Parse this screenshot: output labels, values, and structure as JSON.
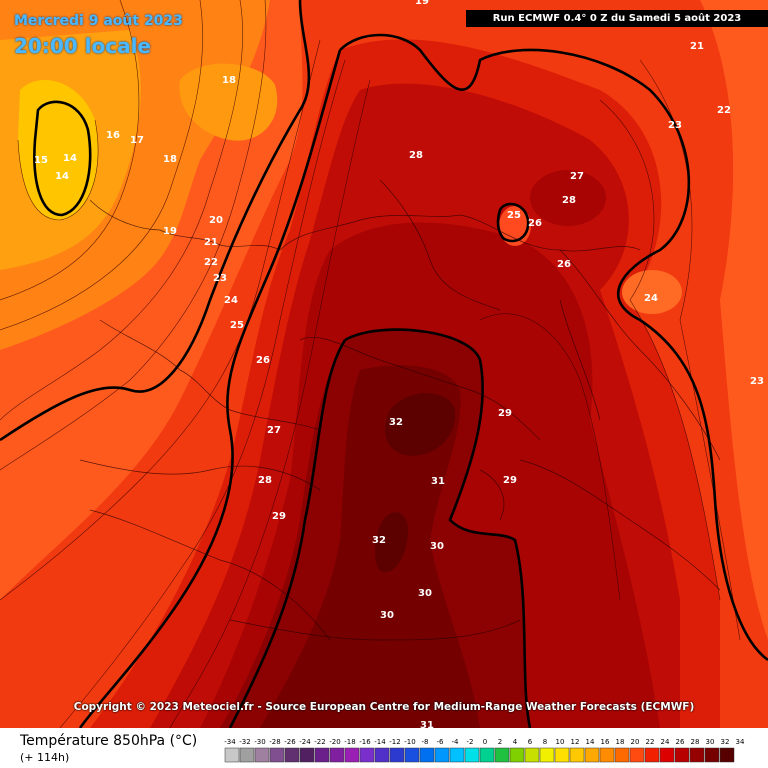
{
  "header": {
    "date_title": "Mercredi 9 août 2023",
    "time_title": "20:00 locale",
    "run_info": "Run ECMWF 0.4° 0 Z du Samedi 5 août 2023"
  },
  "footer": {
    "copyright": "Copyright © 2023 Meteociel.fr - Source European Centre for Medium-Range Weather Forecasts (ECMWF)",
    "legend_title": "Température 850hPa (°C)",
    "legend_subtitle": "(+ 114h)"
  },
  "scale": {
    "labels": [
      "-34",
      "-32",
      "-30",
      "-28",
      "-26",
      "-24",
      "-22",
      "-20",
      "-18",
      "-16",
      "-14",
      "-12",
      "-10",
      "-8",
      "-6",
      "-4",
      "-2",
      "0",
      "2",
      "4",
      "6",
      "8",
      "10",
      "12",
      "14",
      "16",
      "18",
      "20",
      "22",
      "24",
      "26",
      "28",
      "30",
      "32",
      "34"
    ],
    "colors": [
      "#c8c8c8",
      "#a0a0a0",
      "#a080a0",
      "#7f4f8f",
      "#603070",
      "#502060",
      "#6a1f8a",
      "#8020a0",
      "#9a1fb5",
      "#7a2fcc",
      "#5030c8",
      "#2c3ad0",
      "#1a50e0",
      "#0070f0",
      "#0098ff",
      "#00c0ff",
      "#00e0e8",
      "#00d090",
      "#20c040",
      "#80d000",
      "#c8e000",
      "#f0f000",
      "#ffe000",
      "#ffc800",
      "#ffa800",
      "#ff8c00",
      "#ff6a00",
      "#ff4a10",
      "#f02000",
      "#dc0000",
      "#b80000",
      "#960000",
      "#760000",
      "#560000"
    ]
  },
  "map": {
    "labels": [
      {
        "id": "label-14a",
        "text": "14"
      },
      {
        "id": "label-14b",
        "text": "14"
      },
      {
        "id": "label-15",
        "text": "15"
      },
      {
        "id": "label-16",
        "text": "16"
      },
      {
        "id": "label-17",
        "text": "17"
      },
      {
        "id": "label-18a",
        "text": "18"
      },
      {
        "id": "label-18b",
        "text": "18"
      },
      {
        "id": "label-19",
        "text": "19"
      },
      {
        "id": "label-20",
        "text": "20"
      },
      {
        "id": "label-21a",
        "text": "21"
      },
      {
        "id": "label-21b",
        "text": "21"
      },
      {
        "id": "label-22a",
        "text": "22"
      },
      {
        "id": "label-22b",
        "text": "22"
      },
      {
        "id": "label-23a",
        "text": "23"
      },
      {
        "id": "label-23b",
        "text": "23"
      },
      {
        "id": "label-23c",
        "text": "23"
      },
      {
        "id": "label-24a",
        "text": "24"
      },
      {
        "id": "label-24b",
        "text": "24"
      },
      {
        "id": "label-25a",
        "text": "25"
      },
      {
        "id": "label-25b",
        "text": "25"
      },
      {
        "id": "label-26a",
        "text": "26"
      },
      {
        "id": "label-26b",
        "text": "26"
      },
      {
        "id": "label-26c",
        "text": "26"
      },
      {
        "id": "label-27a",
        "text": "27"
      },
      {
        "id": "label-27b",
        "text": "27"
      },
      {
        "id": "label-28a",
        "text": "28"
      },
      {
        "id": "label-28b",
        "text": "28"
      },
      {
        "id": "label-28c",
        "text": "28"
      },
      {
        "id": "label-29a",
        "text": "29"
      },
      {
        "id": "label-29b",
        "text": "29"
      },
      {
        "id": "label-29c",
        "text": "29"
      },
      {
        "id": "label-30a",
        "text": "30"
      },
      {
        "id": "label-30b",
        "text": "30"
      },
      {
        "id": "label-30c",
        "text": "30"
      },
      {
        "id": "label-31a",
        "text": "31"
      },
      {
        "id": "label-31b",
        "text": "31"
      },
      {
        "id": "label-32a",
        "text": "32"
      },
      {
        "id": "label-32b",
        "text": "32"
      },
      {
        "id": "label-19top",
        "text": "19"
      }
    ]
  }
}
